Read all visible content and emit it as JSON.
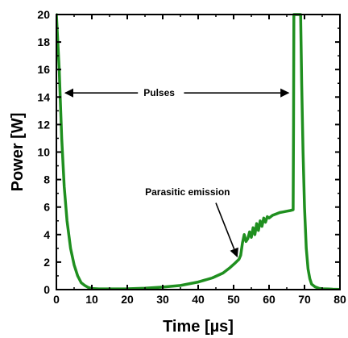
{
  "chart_data": {
    "type": "line",
    "title": "",
    "xlabel": "Time  [µs]",
    "ylabel": "Power [W]",
    "xlim": [
      0,
      80
    ],
    "ylim": [
      0,
      20
    ],
    "x_ticks": [
      "0",
      "10",
      "20",
      "30",
      "40",
      "50",
      "60",
      "70",
      "80"
    ],
    "y_ticks": [
      "0",
      "2",
      "4",
      "6",
      "8",
      "10",
      "12",
      "14",
      "16",
      "18",
      "20"
    ],
    "grid": false,
    "line_color": "#1f8f1f",
    "series": [
      {
        "x": [
          0.0,
          0.8,
          1.5,
          2.2,
          3.0,
          4.0,
          5.0,
          6.0,
          7.0,
          8.0,
          9.0,
          10.0,
          12.0,
          15.0,
          20.0,
          25.0,
          30.0,
          35.0,
          40.0,
          44.0,
          47.0,
          49.0,
          50.5,
          51.5,
          52.0,
          52.5,
          53.0,
          53.5,
          54.0,
          54.5,
          55.0,
          55.5,
          56.0,
          56.5,
          57.0,
          57.5,
          58.0,
          58.5,
          59.0,
          59.5,
          60.0,
          61.0,
          62.0,
          63.0,
          64.0,
          65.0,
          66.0,
          66.8,
          66.9,
          67.0,
          67.2,
          67.5,
          68.0,
          68.5,
          68.7,
          68.9,
          69.2,
          69.6,
          70.0,
          70.5,
          71.0,
          71.5,
          72.0,
          73.0,
          74.0,
          75.0,
          76.0,
          77.0,
          78.0,
          80.0
        ],
        "y": [
          20,
          16,
          11,
          7.5,
          5,
          3,
          1.8,
          1.0,
          0.5,
          0.3,
          0.15,
          0.08,
          0.05,
          0.05,
          0.06,
          0.1,
          0.18,
          0.3,
          0.55,
          0.85,
          1.2,
          1.6,
          1.95,
          2.2,
          2.5,
          3.4,
          4.0,
          3.5,
          3.7,
          4.2,
          3.8,
          4.5,
          4.0,
          4.8,
          4.3,
          5.0,
          4.6,
          5.2,
          4.9,
          5.3,
          5.2,
          5.4,
          5.5,
          5.6,
          5.65,
          5.7,
          5.75,
          5.8,
          12,
          20,
          20,
          20,
          20,
          20,
          20,
          20,
          15,
          10,
          6,
          3,
          1.5,
          0.8,
          0.4,
          0.2,
          0.1,
          0.06,
          0.05,
          0.04,
          0.03,
          0.02
        ]
      }
    ],
    "annotations": [
      {
        "text": "Pulses",
        "x": 29,
        "y": 14.3,
        "arrow_from": [
          [
            23,
            14.3
          ],
          [
            36,
            14.3
          ]
        ],
        "arrow_to": [
          [
            2.5,
            14.3
          ],
          [
            65.5,
            14.3
          ]
        ]
      },
      {
        "text": "Parasitic emission",
        "x": 37,
        "y": 7.1,
        "arrow_from": [
          [
            45,
            6.3
          ]
        ],
        "arrow_to": [
          [
            51,
            2.4
          ]
        ]
      }
    ]
  }
}
